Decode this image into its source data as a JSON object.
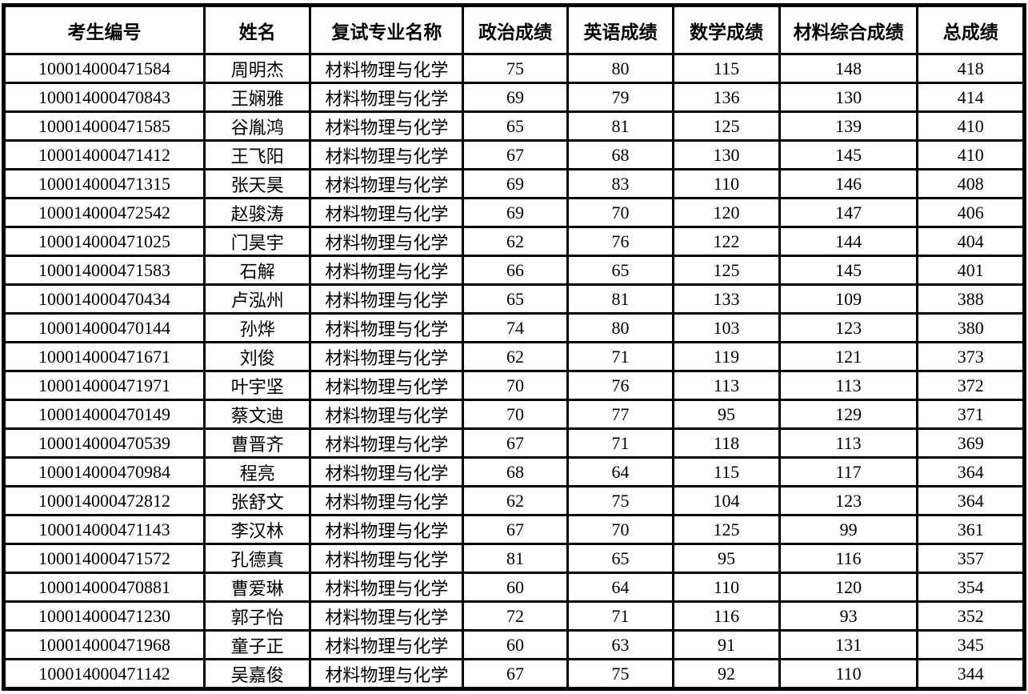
{
  "document": {
    "type": "admission-retest-score-table"
  },
  "colors": {
    "border": "#000000",
    "text": "#000000",
    "background": "#ffffff"
  },
  "table": {
    "columns": [
      "考生编号",
      "姓名",
      "复试专业名称",
      "政治成绩",
      "英语成绩",
      "数学成绩",
      "材料综合成绩",
      "总成绩"
    ],
    "rows": [
      [
        "100014000471584",
        "周明杰",
        "材料物理与化学",
        "75",
        "80",
        "115",
        "148",
        "418"
      ],
      [
        "100014000470843",
        "王娴雅",
        "材料物理与化学",
        "69",
        "79",
        "136",
        "130",
        "414"
      ],
      [
        "100014000471585",
        "谷胤鸿",
        "材料物理与化学",
        "65",
        "81",
        "125",
        "139",
        "410"
      ],
      [
        "100014000471412",
        "王飞阳",
        "材料物理与化学",
        "67",
        "68",
        "130",
        "145",
        "410"
      ],
      [
        "100014000471315",
        "张天昊",
        "材料物理与化学",
        "69",
        "83",
        "110",
        "146",
        "408"
      ],
      [
        "100014000472542",
        "赵骏涛",
        "材料物理与化学",
        "69",
        "70",
        "120",
        "147",
        "406"
      ],
      [
        "100014000471025",
        "门昊宇",
        "材料物理与化学",
        "62",
        "76",
        "122",
        "144",
        "404"
      ],
      [
        "100014000471583",
        "石解",
        "材料物理与化学",
        "66",
        "65",
        "125",
        "145",
        "401"
      ],
      [
        "100014000470434",
        "卢泓州",
        "材料物理与化学",
        "65",
        "81",
        "133",
        "109",
        "388"
      ],
      [
        "100014000470144",
        "孙烨",
        "材料物理与化学",
        "74",
        "80",
        "103",
        "123",
        "380"
      ],
      [
        "100014000471671",
        "刘俊",
        "材料物理与化学",
        "62",
        "71",
        "119",
        "121",
        "373"
      ],
      [
        "100014000471971",
        "叶宇坚",
        "材料物理与化学",
        "70",
        "76",
        "113",
        "113",
        "372"
      ],
      [
        "100014000470149",
        "蔡文迪",
        "材料物理与化学",
        "70",
        "77",
        "95",
        "129",
        "371"
      ],
      [
        "100014000470539",
        "曹晋齐",
        "材料物理与化学",
        "67",
        "71",
        "118",
        "113",
        "369"
      ],
      [
        "100014000470984",
        "程亮",
        "材料物理与化学",
        "68",
        "64",
        "115",
        "117",
        "364"
      ],
      [
        "100014000472812",
        "张舒文",
        "材料物理与化学",
        "62",
        "75",
        "104",
        "123",
        "364"
      ],
      [
        "100014000471143",
        "李汉林",
        "材料物理与化学",
        "67",
        "70",
        "125",
        "99",
        "361"
      ],
      [
        "100014000471572",
        "孔德真",
        "材料物理与化学",
        "81",
        "65",
        "95",
        "116",
        "357"
      ],
      [
        "100014000470881",
        "曹爱琳",
        "材料物理与化学",
        "60",
        "64",
        "110",
        "120",
        "354"
      ],
      [
        "100014000471230",
        "郭子怡",
        "材料物理与化学",
        "72",
        "71",
        "116",
        "93",
        "352"
      ],
      [
        "100014000471968",
        "童子正",
        "材料物理与化学",
        "60",
        "63",
        "91",
        "131",
        "345"
      ],
      [
        "100014000471142",
        "吴嘉俊",
        "材料物理与化学",
        "67",
        "75",
        "92",
        "110",
        "344"
      ]
    ]
  }
}
